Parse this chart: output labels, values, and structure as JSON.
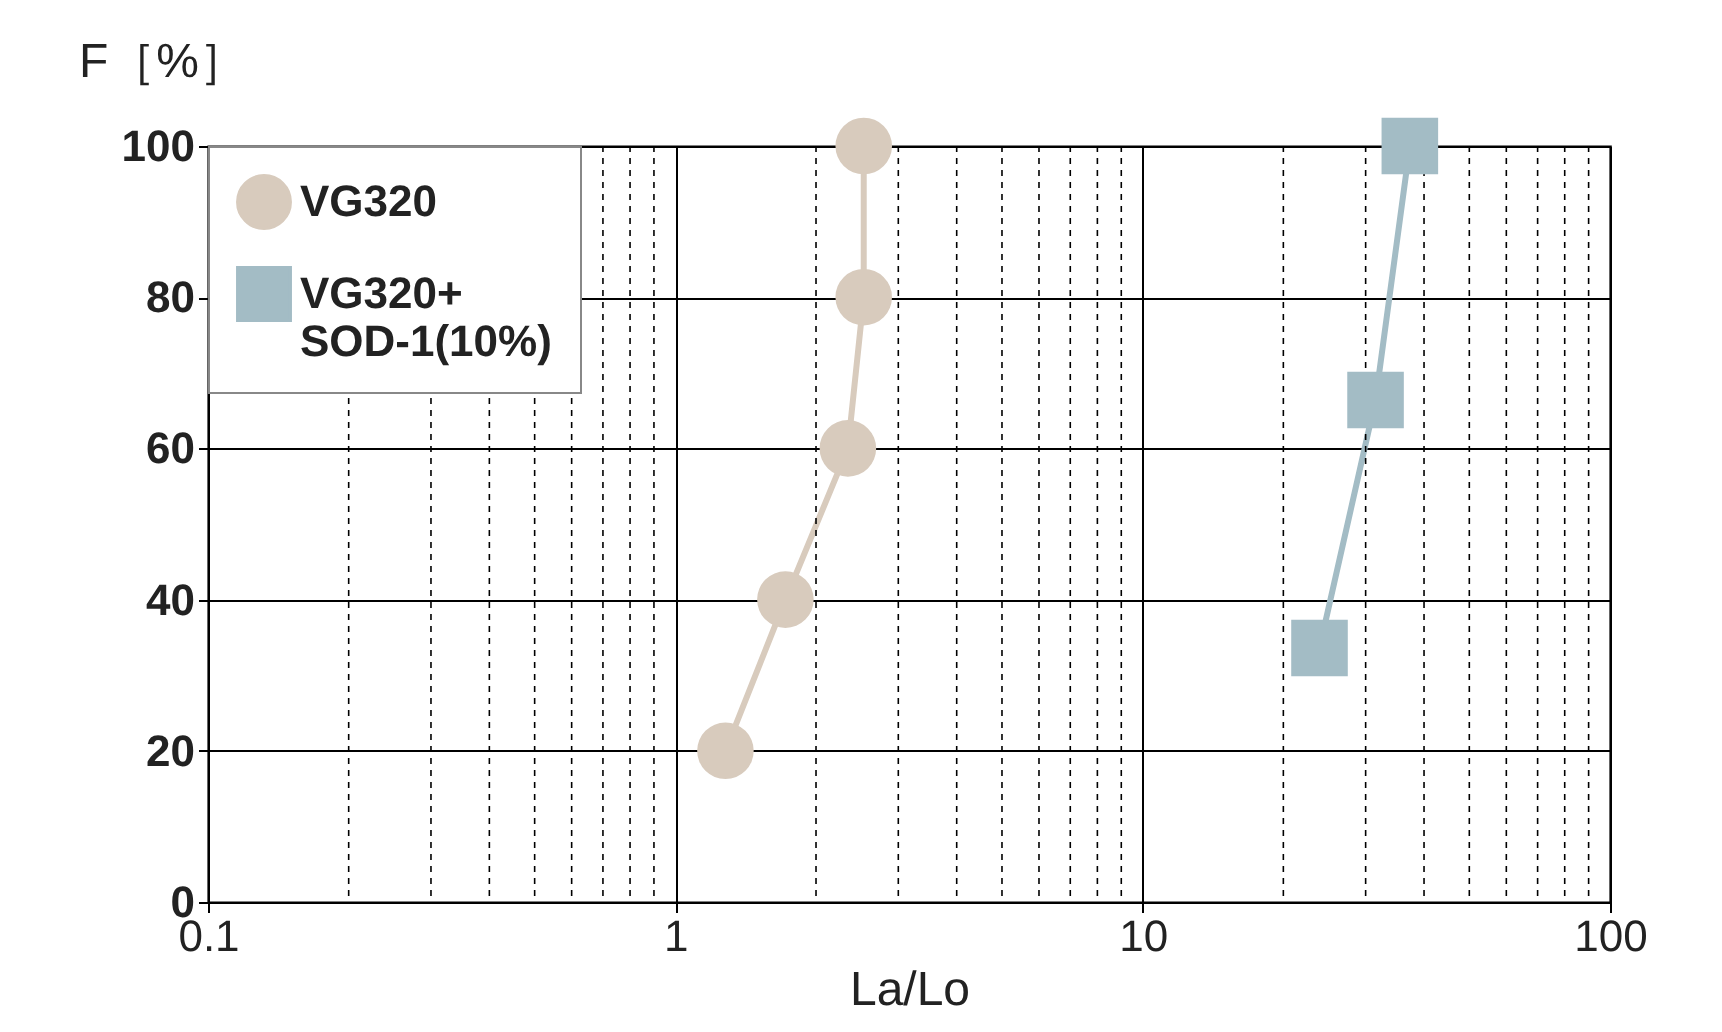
{
  "chart_data": {
    "type": "line",
    "xlabel": "La/Lo",
    "ylabel": "F［%］",
    "log": "x",
    "grid": true,
    "legend": "top left",
    "line_style": "solid",
    "xlim": [
      0.1,
      100
    ],
    "xticks": [
      0.1,
      1,
      10,
      100
    ],
    "ylim": [
      0,
      100
    ],
    "yticks": [
      0,
      20,
      40,
      60,
      80,
      100
    ],
    "series": [
      {
        "name": "VG320",
        "color": "#d8cbbd",
        "marker": "circle",
        "x": [
          1.28,
          1.72,
          2.34,
          2.53,
          2.53
        ],
        "values": [
          20,
          40,
          60,
          80,
          100
        ]
      },
      {
        "name": "VG320+SOD-1(10%)",
        "color": "#a3bcc5",
        "marker": "square",
        "x": [
          23.9,
          31.5,
          37.3
        ],
        "values": [
          33.6,
          66.4,
          100
        ]
      }
    ]
  }
}
